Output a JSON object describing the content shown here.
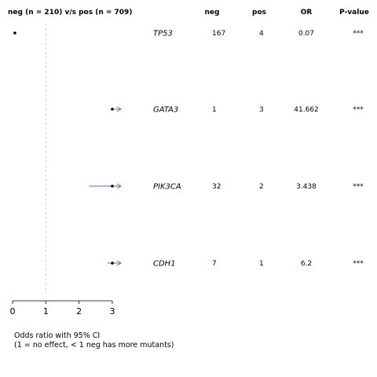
{
  "header": {
    "comparison": "neg (n = 210) v/s pos (n = 709)",
    "col_neg": "neg",
    "col_pos": "pos",
    "col_or": "OR",
    "col_pvalue": "P-value"
  },
  "footer": {
    "line1": "Odds ratio with 95% CI",
    "line2": "(1 = no effect, < 1 neg has more mutants)"
  },
  "chart_data": {
    "type": "forest",
    "xlim": [
      0,
      3
    ],
    "x_ticks": [
      "0",
      "1",
      "2",
      "3"
    ],
    "reference_line": 1,
    "colors": {
      "ci": "#4472c4",
      "ref": "#cccccc",
      "marker": "#000000"
    },
    "rows": [
      {
        "gene": "TP53",
        "neg": "167",
        "pos": "4",
        "or_text": "0.07",
        "pvalue": "***",
        "or": 0.07,
        "ci_low": 0.03,
        "ci_high": 0.1,
        "clipped_high": false
      },
      {
        "gene": "GATA3",
        "neg": "1",
        "pos": "3",
        "or_text": "41.662",
        "pvalue": "***",
        "or": 41.662,
        "ci_low": 2.95,
        "ci_high": 3.3,
        "clipped_high": true
      },
      {
        "gene": "PIK3CA",
        "neg": "32",
        "pos": "2",
        "or_text": "3.438",
        "pvalue": "***",
        "or": 3.438,
        "ci_low": 2.3,
        "ci_high": 3.3,
        "clipped_high": true
      },
      {
        "gene": "CDH1",
        "neg": "7",
        "pos": "1",
        "or_text": "6.2",
        "pvalue": "***",
        "or": 6.2,
        "ci_low": 2.85,
        "ci_high": 3.3,
        "clipped_high": true
      }
    ]
  }
}
